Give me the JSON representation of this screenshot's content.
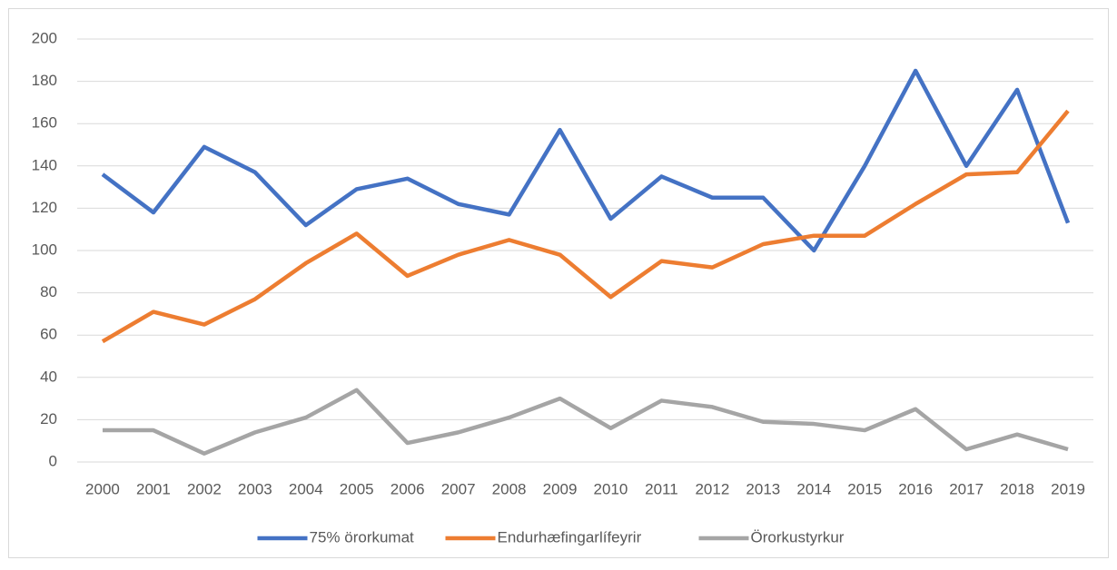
{
  "chart_data": {
    "type": "line",
    "categories": [
      "2000",
      "2001",
      "2002",
      "2003",
      "2004",
      "2005",
      "2006",
      "2007",
      "2008",
      "2009",
      "2010",
      "2011",
      "2012",
      "2013",
      "2014",
      "2015",
      "2016",
      "2017",
      "2018",
      "2019"
    ],
    "series": [
      {
        "name": "75% örorkumat",
        "color": "#4472c4",
        "values": [
          136,
          118,
          149,
          137,
          112,
          129,
          134,
          122,
          117,
          157,
          115,
          135,
          125,
          125,
          100,
          140,
          185,
          140,
          176,
          113
        ]
      },
      {
        "name": "Endurhæfingarlífeyrir",
        "color": "#ed7d31",
        "values": [
          57,
          71,
          65,
          77,
          94,
          108,
          88,
          98,
          105,
          98,
          78,
          95,
          92,
          103,
          107,
          107,
          122,
          136,
          137,
          166
        ]
      },
      {
        "name": "Örorkustyrkur",
        "color": "#a5a5a5",
        "values": [
          15,
          15,
          4,
          14,
          21,
          34,
          9,
          14,
          21,
          30,
          16,
          29,
          26,
          19,
          18,
          15,
          25,
          6,
          13,
          6
        ]
      }
    ],
    "ylim": [
      0,
      200
    ],
    "yticks": [
      0,
      20,
      40,
      60,
      80,
      100,
      120,
      140,
      160,
      180,
      200
    ],
    "grid": true,
    "legend": "bottom"
  }
}
